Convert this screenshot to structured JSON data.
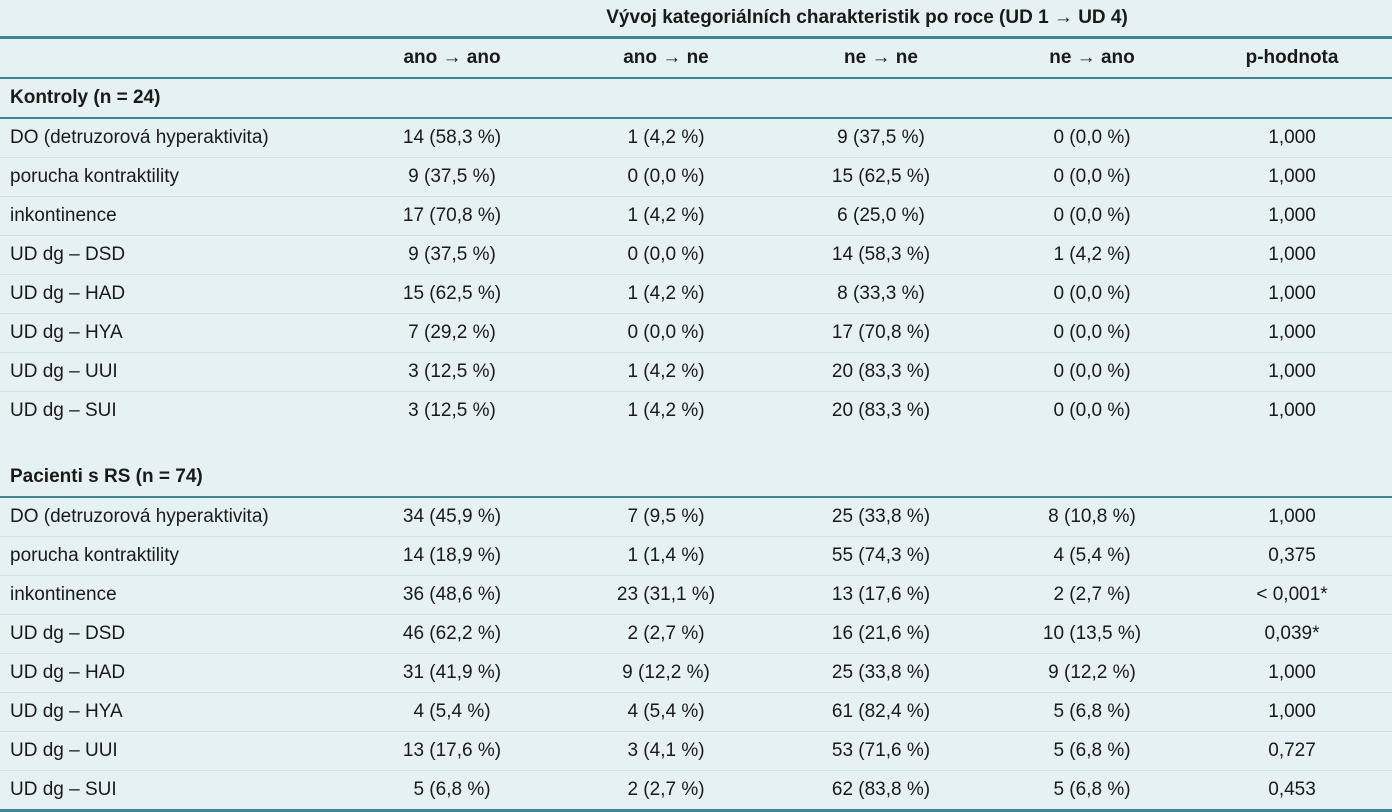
{
  "caption": "Vývoj kategoriálních charakteristik po roce (UD 1 → UD 4)",
  "columns": [
    "ano → ano",
    "ano → ne",
    "ne → ne",
    "ne → ano",
    "p-hodnota"
  ],
  "groups": [
    {
      "title": "Kontroly (n = 24)",
      "rows": [
        {
          "label": "DO (detruzorová hyperaktivita)",
          "values": [
            "14 (58,3 %)",
            "1 (4,2 %)",
            "9 (37,5 %)",
            "0 (0,0 %)",
            "1,000"
          ]
        },
        {
          "label": "porucha kontraktility",
          "values": [
            "9 (37,5 %)",
            "0 (0,0 %)",
            "15 (62,5 %)",
            "0 (0,0 %)",
            "1,000"
          ]
        },
        {
          "label": "inkontinence",
          "values": [
            "17 (70,8 %)",
            "1 (4,2 %)",
            "6 (25,0 %)",
            "0 (0,0 %)",
            "1,000"
          ]
        },
        {
          "label": "UD dg – DSD",
          "values": [
            "9 (37,5 %)",
            "0 (0,0 %)",
            "14 (58,3 %)",
            "1 (4,2 %)",
            "1,000"
          ]
        },
        {
          "label": "UD dg – HAD",
          "values": [
            "15 (62,5 %)",
            "1 (4,2 %)",
            "8 (33,3 %)",
            "0 (0,0 %)",
            "1,000"
          ]
        },
        {
          "label": "UD dg – HYA",
          "values": [
            "7 (29,2 %)",
            "0 (0,0 %)",
            "17 (70,8 %)",
            "0 (0,0 %)",
            "1,000"
          ]
        },
        {
          "label": "UD dg – UUI",
          "values": [
            "3 (12,5 %)",
            "1 (4,2 %)",
            "20 (83,3 %)",
            "0 (0,0 %)",
            "1,000"
          ]
        },
        {
          "label": "UD dg – SUI",
          "values": [
            "3 (12,5 %)",
            "1 (4,2 %)",
            "20 (83,3 %)",
            "0 (0,0 %)",
            "1,000"
          ]
        }
      ]
    },
    {
      "title": "Pacienti s RS (n = 74)",
      "rows": [
        {
          "label": "DO (detruzorová hyperaktivita)",
          "values": [
            "34 (45,9 %)",
            "7 (9,5 %)",
            "25 (33,8 %)",
            "8 (10,8 %)",
            "1,000"
          ]
        },
        {
          "label": "porucha kontraktility",
          "values": [
            "14 (18,9 %)",
            "1 (1,4 %)",
            "55 (74,3 %)",
            "4 (5,4 %)",
            "0,375"
          ]
        },
        {
          "label": "inkontinence",
          "values": [
            "36 (48,6 %)",
            "23 (31,1 %)",
            "13 (17,6 %)",
            "2 (2,7 %)",
            "< 0,001*"
          ]
        },
        {
          "label": "UD dg – DSD",
          "values": [
            "46 (62,2 %)",
            "2 (2,7 %)",
            "16 (21,6 %)",
            "10 (13,5 %)",
            "0,039*"
          ]
        },
        {
          "label": "UD dg – HAD",
          "values": [
            "31 (41,9 %)",
            "9 (12,2 %)",
            "25 (33,8 %)",
            "9 (12,2 %)",
            "1,000"
          ]
        },
        {
          "label": "UD dg – HYA",
          "values": [
            "4 (5,4 %)",
            "4 (5,4 %)",
            "61 (82,4 %)",
            "5 (6,8 %)",
            "1,000"
          ]
        },
        {
          "label": "UD dg – UUI",
          "values": [
            "13 (17,6 %)",
            "3 (4,1 %)",
            "53 (71,6 %)",
            "5 (6,8 %)",
            "0,727"
          ]
        },
        {
          "label": "UD dg – SUI",
          "values": [
            "5 (6,8 %)",
            "2 (2,7 %)",
            "62 (83,8 %)",
            "5 (6,8 %)",
            "0,453"
          ]
        }
      ]
    }
  ]
}
